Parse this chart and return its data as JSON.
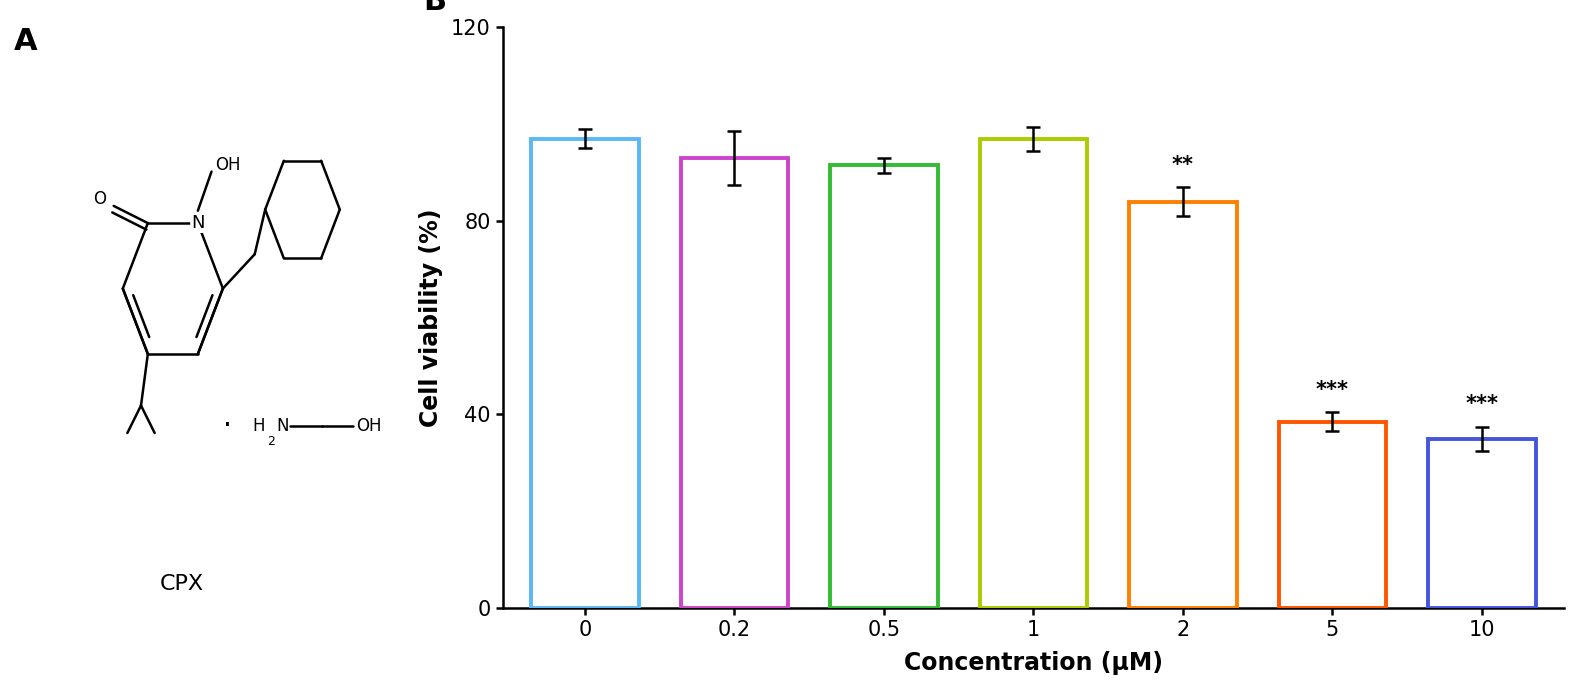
{
  "categories": [
    "0",
    "0.2",
    "0.5",
    "1",
    "2",
    "5",
    "10"
  ],
  "values": [
    97.0,
    93.0,
    91.5,
    97.0,
    84.0,
    38.5,
    35.0
  ],
  "errors": [
    2.0,
    5.5,
    1.5,
    2.5,
    3.0,
    2.0,
    2.5
  ],
  "bar_colors": [
    "#5BB8F5",
    "#CC44CC",
    "#33BB33",
    "#AACC00",
    "#FF8000",
    "#FF5500",
    "#4455DD"
  ],
  "significance": [
    "",
    "",
    "",
    "",
    "**",
    "***",
    "***"
  ],
  "ylabel": "Cell viability (%)",
  "xlabel": "Concentration (μM)",
  "ylim": [
    0,
    120
  ],
  "yticks": [
    0,
    40,
    80,
    120
  ],
  "panel_label_A": "A",
  "panel_label_B": "B",
  "bar_width": 0.72,
  "background_color": "#ffffff",
  "axis_fontsize": 17,
  "tick_fontsize": 15,
  "sig_fontsize": 15,
  "panel_fontsize": 22
}
